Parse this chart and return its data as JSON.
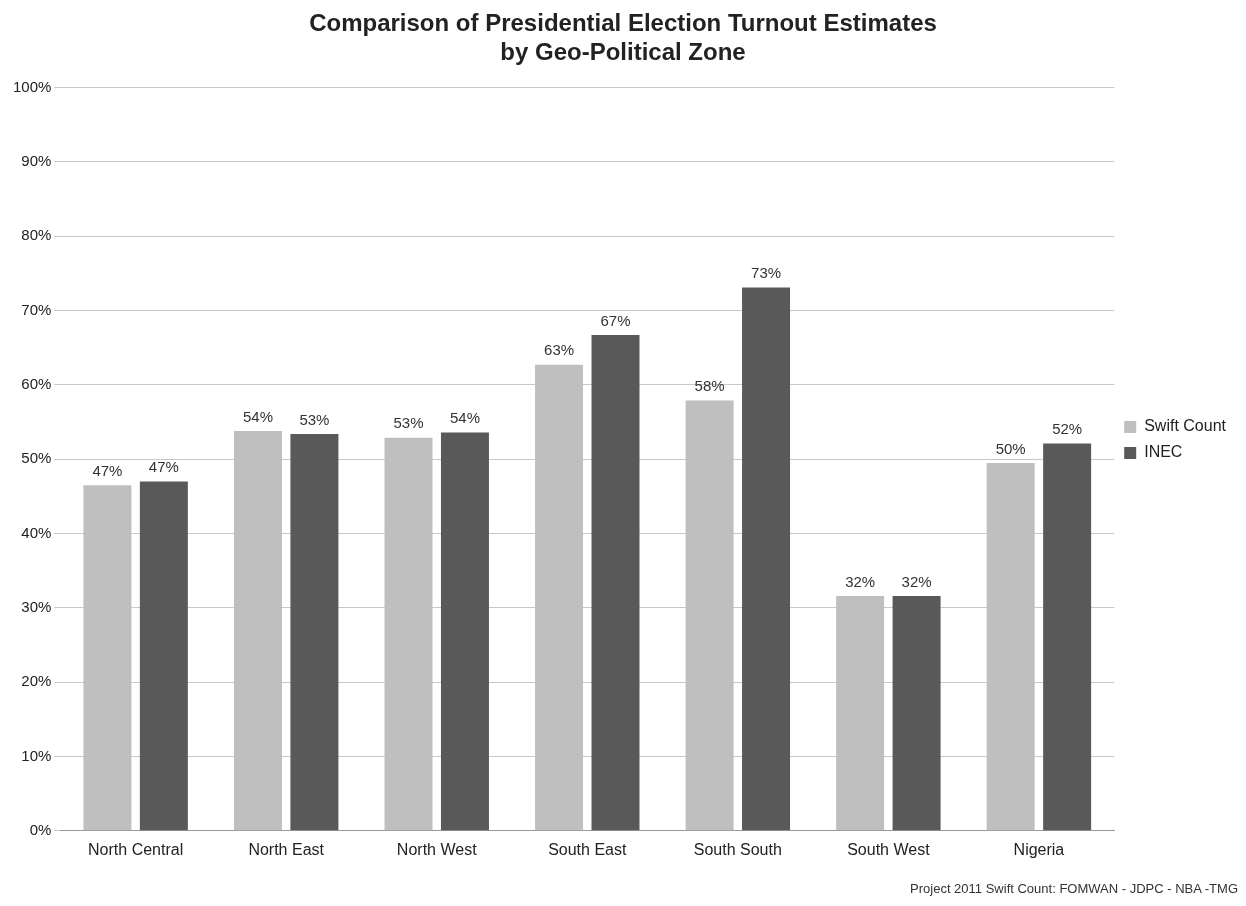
{
  "chart_data": {
    "type": "bar",
    "title": "Comparison of Presidential Election Turnout Estimates\nby Geo-Political Zone",
    "categories": [
      "North Central",
      "North East",
      "North West",
      "South East",
      "South South",
      "South West",
      "Nigeria"
    ],
    "series": [
      {
        "name": "Swift Count",
        "color": "#bfbfbf",
        "values": [
          46.5,
          53.8,
          52.9,
          62.7,
          57.9,
          31.6,
          49.5
        ],
        "value_labels": [
          "47%",
          "54%",
          "53%",
          "63%",
          "58%",
          "32%",
          "50%"
        ]
      },
      {
        "name": "INEC",
        "color": "#595959",
        "values": [
          47,
          53.4,
          53.6,
          66.7,
          73.1,
          31.6,
          52.1
        ],
        "value_labels": [
          "47%",
          "53%",
          "54%",
          "67%",
          "73%",
          "32%",
          "52%"
        ]
      }
    ],
    "ylim": [
      0,
      100
    ],
    "yticks": [
      {
        "value": 0,
        "label": "0%"
      },
      {
        "value": 10,
        "label": "10%"
      },
      {
        "value": 20,
        "label": "20%"
      },
      {
        "value": 30,
        "label": "30%"
      },
      {
        "value": 40,
        "label": "40%"
      },
      {
        "value": 50,
        "label": "50%"
      },
      {
        "value": 60,
        "label": "60%"
      },
      {
        "value": 70,
        "label": "70%"
      },
      {
        "value": 80,
        "label": "80%"
      },
      {
        "value": 90,
        "label": "90%"
      },
      {
        "value": 100,
        "label": "100%"
      }
    ],
    "grid": "y",
    "legend": "right",
    "annotations": [
      "Project 2011 Swift Count: FOMWAN - JDPC - NBA -TMG"
    ]
  }
}
